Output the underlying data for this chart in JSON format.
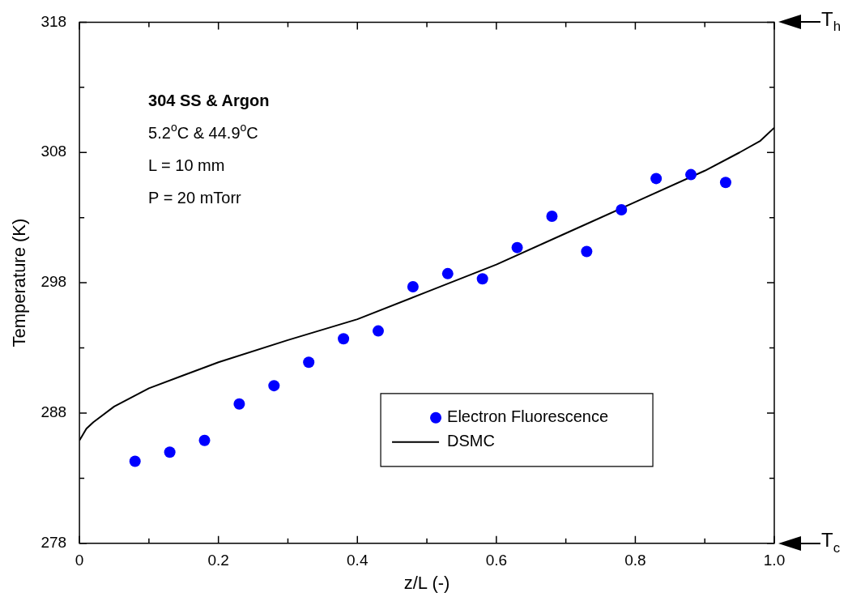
{
  "chart_data": {
    "type": "scatter",
    "xlabel": "z/L (-)",
    "ylabel": "Temperature (K)",
    "xlim": [
      0,
      1
    ],
    "ylim": [
      278,
      318
    ],
    "xticks": [
      {
        "value": 0,
        "label": "0"
      },
      {
        "value": 0.1,
        "label": null
      },
      0.2,
      {
        "value": 0.3,
        "label": null
      },
      0.4,
      {
        "value": 0.5,
        "label": null
      },
      0.6,
      {
        "value": 0.7,
        "label": null
      },
      0.8,
      {
        "value": 0.9,
        "label": null
      },
      {
        "value": 1,
        "label": "1.0"
      }
    ],
    "yticks": [
      278,
      {
        "value": 283,
        "label": null
      },
      288,
      {
        "value": 293,
        "label": null
      },
      298,
      {
        "value": 303,
        "label": null
      },
      308,
      {
        "value": 313,
        "label": null
      },
      318
    ],
    "grid": false,
    "legend": "bottom",
    "series": [
      {
        "name": "Electron Fluorescence",
        "type": "scatter",
        "color": "#0000ff",
        "marker": "circle",
        "x": [
          0.08,
          0.13,
          0.18,
          0.23,
          0.28,
          0.33,
          0.38,
          0.43,
          0.48,
          0.53,
          0.58,
          0.63,
          0.68,
          0.73,
          0.78,
          0.83,
          0.88,
          0.93
        ],
        "values": [
          284.3,
          285.0,
          285.9,
          288.7,
          290.1,
          291.9,
          293.7,
          294.3,
          297.7,
          298.7,
          298.3,
          300.7,
          303.1,
          300.4,
          303.6,
          306.0,
          306.3,
          305.7
        ]
      },
      {
        "name": "DSMC",
        "type": "line",
        "color": "#000000",
        "marker": "none",
        "line_style": "solid",
        "x": [
          0,
          0.01,
          0.02,
          0.05,
          0.1,
          0.15,
          0.2,
          0.3,
          0.4,
          0.5,
          0.6,
          0.7,
          0.8,
          0.9,
          0.95,
          0.98,
          1.0
        ],
        "values": [
          285.9,
          286.8,
          287.3,
          288.5,
          289.9,
          290.9,
          291.9,
          293.6,
          295.2,
          297.3,
          299.4,
          301.8,
          304.2,
          306.6,
          308.0,
          308.9,
          309.9
        ]
      }
    ],
    "annotations": [
      "304 SS & Argon",
      "5.2$^{o}$C & 44.9$^{o}$C",
      "L = 10 mm",
      "P = 20 mTorr",
      "T$_{h}$",
      "T$_{c}$"
    ]
  }
}
